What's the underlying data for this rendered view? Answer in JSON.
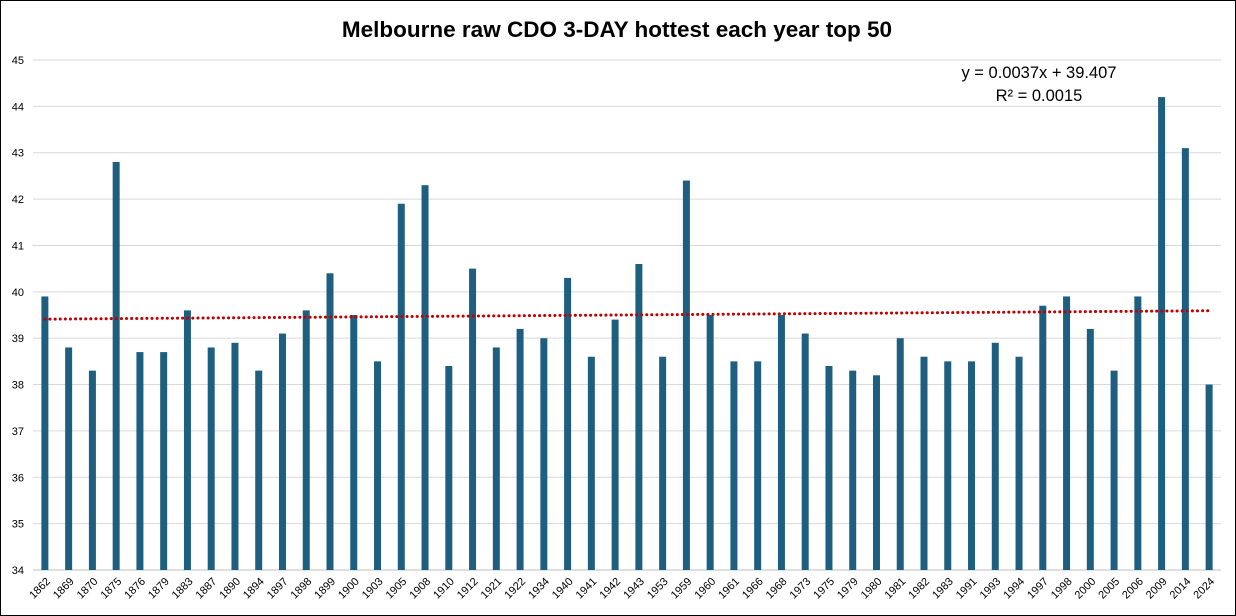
{
  "chart_data": {
    "type": "bar",
    "title": "Melbourne raw CDO 3-DAY hottest each year top 50",
    "categories": [
      "1862",
      "1869",
      "1870",
      "1875",
      "1876",
      "1879",
      "1883",
      "1887",
      "1890",
      "1894",
      "1897",
      "1898",
      "1899",
      "1900",
      "1903",
      "1905",
      "1908",
      "1910",
      "1912",
      "1921",
      "1922",
      "1934",
      "1940",
      "1941",
      "1942",
      "1943",
      "1953",
      "1959",
      "1960",
      "1961",
      "1966",
      "1968",
      "1973",
      "1975",
      "1979",
      "1980",
      "1981",
      "1982",
      "1983",
      "1991",
      "1993",
      "1994",
      "1997",
      "1998",
      "2000",
      "2005",
      "2006",
      "2009",
      "2014",
      "2024"
    ],
    "values": [
      39.9,
      38.8,
      38.3,
      42.8,
      38.7,
      38.7,
      39.6,
      38.8,
      38.9,
      38.3,
      39.1,
      39.6,
      40.4,
      39.5,
      38.5,
      41.9,
      42.3,
      38.4,
      40.5,
      38.8,
      39.2,
      39.0,
      40.3,
      38.6,
      39.4,
      40.6,
      38.6,
      42.4,
      39.5,
      38.5,
      38.5,
      39.5,
      39.1,
      38.4,
      38.3,
      38.2,
      39.0,
      38.6,
      38.5,
      38.5,
      38.9,
      38.6,
      39.7,
      39.9,
      39.2,
      38.3,
      39.9,
      44.2,
      43.1,
      38.0
    ],
    "ylim": [
      34,
      45
    ],
    "yticks": [
      34,
      35,
      36,
      37,
      38,
      39,
      40,
      41,
      42,
      43,
      44,
      45
    ],
    "xlabel_rotation": "diagonal",
    "grid": true,
    "legend": "none",
    "trendline": {
      "type": "linear",
      "slope": 0.0037,
      "intercept": 39.407,
      "x_start": 1,
      "x_end": 50,
      "equation_label": "y = 0.0037x + 39.407",
      "r_squared_label": "R² = 0.0015",
      "style": "dotted"
    }
  },
  "colors": {
    "bar": "#1e5f80",
    "trendline": "#c00000",
    "gridline": "#d9d9d9",
    "axis_line": "#bfbfbf",
    "frame": "#000000",
    "background": "#ffffff"
  }
}
